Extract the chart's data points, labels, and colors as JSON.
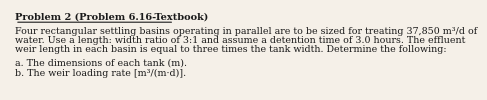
{
  "title": "Problem 2 (Problem 6.16-Textbook)",
  "body_line1": "Four rectangular settling basins operating in parallel are to be sized for treating 37,850 m³/d of",
  "body_line2": "water. Use a length: width ratio of 3:1 and assume a detention time of 3.0 hours. The effluent",
  "body_line3": "weir length in each basin is equal to three times the tank width. Determine the following:",
  "item_a": "a. The dimensions of each tank (m).",
  "item_b": "b. The weir loading rate [m³/(m·d)].",
  "font_family": "DejaVu Serif",
  "title_fontsize": 7.0,
  "body_fontsize": 6.8,
  "text_color": "#1a1a1a",
  "bg_color": "#f5f0e8"
}
